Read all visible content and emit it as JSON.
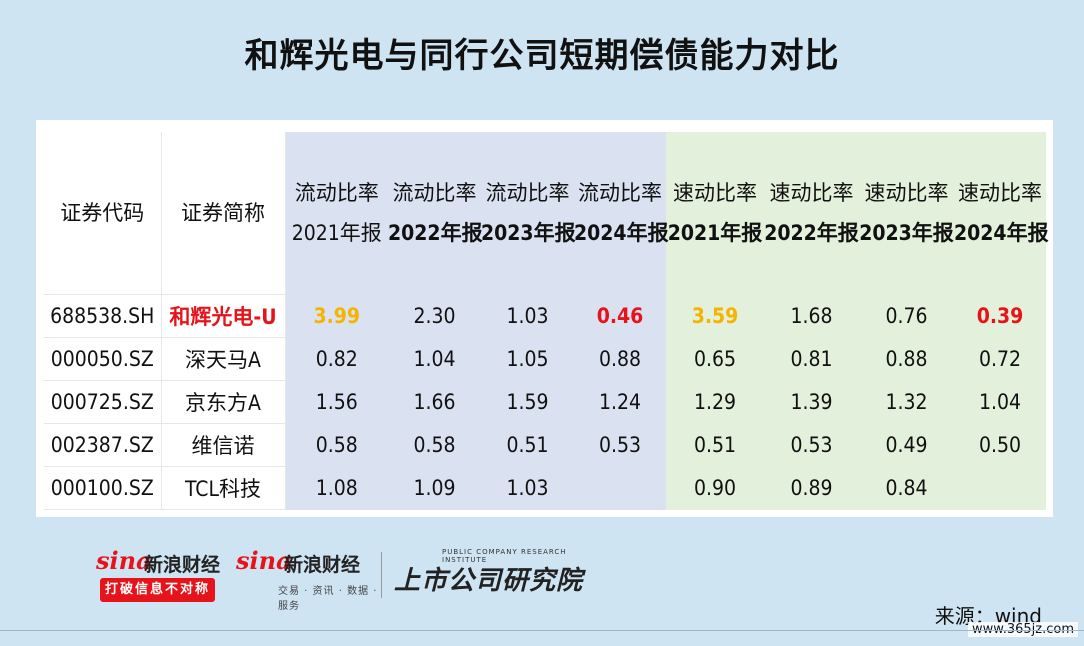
{
  "title": "和辉光电与同行公司短期偿债能力对比",
  "table": {
    "headers": {
      "code": "证券代码",
      "name": "证券简称",
      "current_ratio": [
        {
          "label": "流动比率",
          "year": "2021年报"
        },
        {
          "label": "流动比率",
          "year": "2022年报"
        },
        {
          "label": "流动比率",
          "year": "2023年报"
        },
        {
          "label": "流动比率",
          "year": "2024年报"
        }
      ],
      "quick_ratio": [
        {
          "label": "速动比率",
          "year": "2021年报"
        },
        {
          "label": "速动比率",
          "year": "2022年报"
        },
        {
          "label": "速动比率",
          "year": "2023年报"
        },
        {
          "label": "速动比率",
          "year": "2024年报"
        }
      ]
    },
    "rows": [
      {
        "code": "688538.SH",
        "name": "和辉光电-U",
        "current": [
          "3.99",
          "2.30",
          "1.03",
          "0.46"
        ],
        "quick": [
          "3.59",
          "1.68",
          "0.76",
          "0.39"
        ]
      },
      {
        "code": "000050.SZ",
        "name": "深天马A",
        "current": [
          "0.82",
          "1.04",
          "1.05",
          "0.88"
        ],
        "quick": [
          "0.65",
          "0.81",
          "0.88",
          "0.72"
        ]
      },
      {
        "code": "000725.SZ",
        "name": "京东方A",
        "current": [
          "1.56",
          "1.66",
          "1.59",
          "1.24"
        ],
        "quick": [
          "1.29",
          "1.39",
          "1.32",
          "1.04"
        ]
      },
      {
        "code": "002387.SZ",
        "name": "维信诺",
        "current": [
          "0.58",
          "0.58",
          "0.51",
          "0.53"
        ],
        "quick": [
          "0.51",
          "0.53",
          "0.49",
          "0.50"
        ]
      },
      {
        "code": "000100.SZ",
        "name": "TCL科技",
        "current": [
          "1.08",
          "1.09",
          "1.03",
          ""
        ],
        "quick": [
          "0.90",
          "0.89",
          "0.84",
          ""
        ]
      }
    ]
  },
  "colors": {
    "background": "#cfe4f3",
    "current_ratio_bg": "#dae2f2",
    "quick_ratio_bg": "#e3f0dc",
    "highlight_red": "#e6141a",
    "highlight_orange": "#f5b400"
  },
  "footer": {
    "logo1": {
      "brand": "sina",
      "name": "新浪财经",
      "slogan": "打破信息不对称"
    },
    "logo2": {
      "brand": "sina",
      "name": "新浪财经",
      "sub": "交易 · 资讯 · 数据 · 服务"
    },
    "logo3": {
      "small": "PUBLIC COMPANY RESEARCH INSTITUTE",
      "big": "上市公司研究院"
    },
    "source": "来源：wind",
    "watermark": "www.365jz.com"
  }
}
